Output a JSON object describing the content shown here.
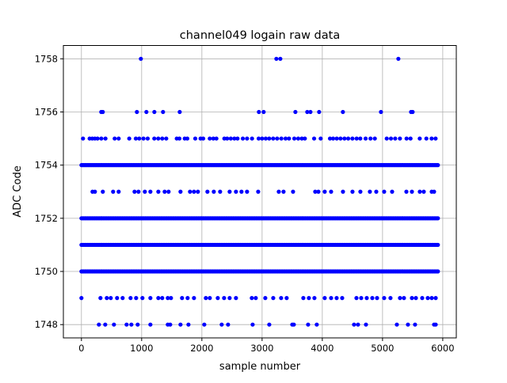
{
  "chart_data": {
    "type": "scatter",
    "title": "channel049 logain raw data",
    "xlabel": "sample number",
    "ylabel": "ADC Code",
    "xlim": [
      -300,
      6225
    ],
    "ylim": [
      1747.5,
      1758.5
    ],
    "xticks": [
      0,
      1000,
      2000,
      3000,
      4000,
      5000,
      6000
    ],
    "yticks": [
      1748,
      1750,
      1752,
      1754,
      1756,
      1758
    ],
    "grid": true,
    "marker_color": "#0000ff",
    "series": [
      {
        "name": "raw",
        "levels": [
          {
            "y": 1758,
            "x": [
              987,
              3237,
              3303,
              5263
            ]
          },
          {
            "y": 1756,
            "x": [
              329,
              355,
              921,
              1079,
              1211,
              1355,
              1632,
              2947,
              3026,
              3553,
              3750,
              3803,
              3947,
              4342,
              4974,
              5474,
              5500
            ]
          },
          {
            "y": 1755,
            "x": [
              26,
              136,
              180,
              223,
              267,
              330,
              399,
              552,
              618,
              794,
              903,
              960,
              1030,
              1100,
              1210,
              1276,
              1342,
              1408,
              1583,
              1627,
              1715,
              1758,
              1890,
              1978,
              2022,
              2131,
              2190,
              2241,
              2373,
              2420,
              2480,
              2540,
              2592,
              2680,
              2750,
              2833,
              2943,
              3000,
              3060,
              3118,
              3184,
              3250,
              3320,
              3390,
              3447,
              3535,
              3600,
              3660,
              3710,
              3864,
              3973,
              4127,
              4180,
              4240,
              4302,
              4368,
              4430,
              4500,
              4570,
              4631,
              4719,
              4800,
              4872,
              5070,
              5140,
              5210,
              5289,
              5399,
              5465,
              5618,
              5728,
              5815,
              5881
            ]
          },
          {
            "y": 1754,
            "dense": true,
            "x_range": [
              0,
              5930
            ]
          },
          {
            "y": 1753,
            "x": [
              184,
              224,
              355,
              526,
              618,
              882,
              947,
              1053,
              1145,
              1277,
              1382,
              1447,
              1645,
              1803,
              1869,
              1934,
              2092,
              2198,
              2303,
              2461,
              2566,
              2658,
              2750,
              2935,
              3277,
              3356,
              3514,
              3882,
              3935,
              4040,
              4146,
              4343,
              4501,
              4632,
              4790,
              4896,
              5027,
              5159,
              5396,
              5488,
              5619,
              5685,
              5817,
              5856
            ]
          },
          {
            "y": 1752,
            "dense": true,
            "x_range": [
              0,
              5930
            ]
          },
          {
            "y": 1751,
            "dense": true,
            "x_range": [
              0,
              5930
            ]
          },
          {
            "y": 1750,
            "dense": true,
            "x_range": [
              0,
              5930
            ]
          },
          {
            "y": 1749,
            "x": [
              0,
              316,
              421,
              487,
              592,
              684,
              816,
              908,
              1013,
              1145,
              1277,
              1342,
              1434,
              1487,
              1671,
              1763,
              1869,
              2066,
              2132,
              2264,
              2369,
              2461,
              2566,
              2829,
              2895,
              3053,
              3185,
              3316,
              3408,
              3685,
              3777,
              3869,
              4040,
              4146,
              4238,
              4330,
              4567,
              4646,
              4738,
              4830,
              4909,
              5027,
              5132,
              5290,
              5356,
              5488,
              5554,
              5659,
              5751,
              5817,
              5883
            ]
          },
          {
            "y": 1748,
            "x": [
              290,
              395,
              540,
              750,
              829,
              934,
              1145,
              1434,
              1474,
              1645,
              1777,
              2040,
              2329,
              2435,
              2843,
              3119,
              3501,
              3527,
              3764,
              3908,
              4527,
              4593,
              4725,
              5238,
              5422,
              5540,
              5856,
              5883
            ]
          }
        ]
      }
    ]
  }
}
